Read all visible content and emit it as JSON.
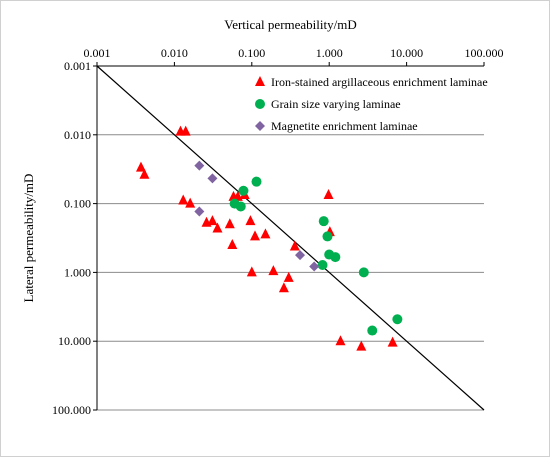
{
  "chart_data": {
    "type": "scatter",
    "xlabel": "Vertical permeability/mD",
    "ylabel": "Lateral permeability/mD",
    "x_scale": "log",
    "y_scale": "log",
    "y_inverted": true,
    "xlim": [
      0.001,
      100
    ],
    "ylim": [
      0.001,
      100
    ],
    "x_ticks": [
      "0.001",
      "0.010",
      "0.100",
      "1.000",
      "10.000",
      "100.000"
    ],
    "y_ticks": [
      "0.001",
      "0.010",
      "0.100",
      "1.000",
      "10.000",
      "100.000"
    ],
    "x_tick_values": [
      0.001,
      0.01,
      0.1,
      1,
      10,
      100
    ],
    "y_tick_values": [
      0.001,
      0.01,
      0.1,
      1,
      10,
      100
    ],
    "x_axis_position": "top",
    "grid": "horizontal",
    "legend_position": "top-right",
    "reference_line": {
      "from": [
        0.001,
        0.001
      ],
      "to": [
        100,
        100
      ]
    },
    "series": [
      {
        "name": "Iron-stained argillaceous enrichment laminae",
        "marker": "triangle",
        "color": "#ff0000",
        "points": [
          [
            0.0037,
            0.03
          ],
          [
            0.0041,
            0.038
          ],
          [
            0.012,
            0.009
          ],
          [
            0.014,
            0.009
          ],
          [
            0.013,
            0.09
          ],
          [
            0.016,
            0.1
          ],
          [
            0.026,
            0.19
          ],
          [
            0.031,
            0.18
          ],
          [
            0.036,
            0.23
          ],
          [
            0.052,
            0.2
          ],
          [
            0.056,
            0.4
          ],
          [
            0.058,
            0.08
          ],
          [
            0.066,
            0.08
          ],
          [
            0.081,
            0.075
          ],
          [
            0.096,
            0.18
          ],
          [
            0.1,
            1.0
          ],
          [
            0.11,
            0.3
          ],
          [
            0.15,
            0.28
          ],
          [
            0.19,
            0.96
          ],
          [
            0.26,
            1.7
          ],
          [
            0.3,
            1.2
          ],
          [
            0.36,
            0.42
          ],
          [
            0.98,
            0.075
          ],
          [
            1.02,
            0.26
          ],
          [
            1.4,
            10.0
          ],
          [
            2.6,
            12.0
          ],
          [
            6.6,
            10.5
          ]
        ]
      },
      {
        "name": "Grain size varying laminae",
        "marker": "circle",
        "color": "#00b050",
        "points": [
          [
            0.06,
            0.1
          ],
          [
            0.072,
            0.11
          ],
          [
            0.078,
            0.065
          ],
          [
            0.115,
            0.048
          ],
          [
            0.85,
            0.18
          ],
          [
            0.95,
            0.3
          ],
          [
            1.0,
            0.55
          ],
          [
            1.2,
            0.6
          ],
          [
            0.82,
            0.78
          ],
          [
            2.8,
            1.0
          ],
          [
            3.6,
            7.0
          ],
          [
            7.6,
            4.8
          ]
        ]
      },
      {
        "name": "Magnetite enrichment laminae",
        "marker": "diamond",
        "color": "#8064a2",
        "points": [
          [
            0.021,
            0.028
          ],
          [
            0.031,
            0.043
          ],
          [
            0.021,
            0.13
          ],
          [
            0.42,
            0.56
          ],
          [
            0.64,
            0.82
          ]
        ]
      }
    ]
  }
}
